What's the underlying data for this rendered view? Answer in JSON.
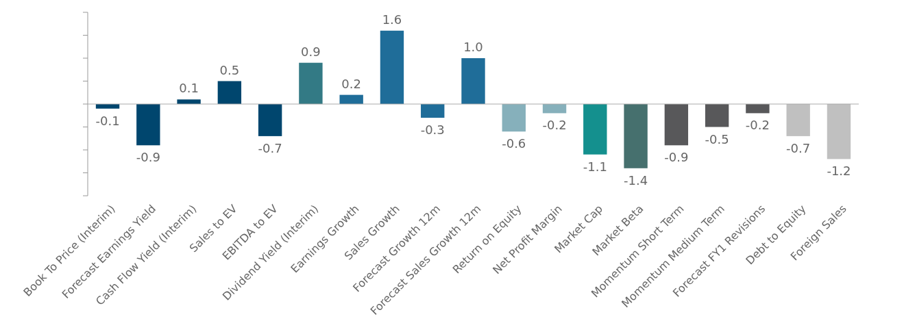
{
  "chart_data": {
    "type": "bar",
    "categories": [
      "Book To Price (Interim)",
      "Forecast Earnings Yield",
      "Cash Flow Yield (Interim)",
      "Sales to EV",
      "EBITDA to EV",
      "Dividend Yield (Interim)",
      "Earnings Growth",
      "Sales Growth",
      "Forecast Growth 12m",
      "Forecast Sales Growth 12m",
      "Return on Equity",
      "Net Profit Margin",
      "Market Cap",
      "Market Beta",
      "Momentum Short Term",
      "Momentum Medium Term",
      "Forecast FY1 Revisions",
      "Debt to Equity",
      "Foreign Sales"
    ],
    "values": [
      -0.1,
      -0.9,
      0.1,
      0.5,
      -0.7,
      0.9,
      0.2,
      1.6,
      -0.3,
      1.0,
      -0.6,
      -0.2,
      -1.1,
      -1.4,
      -0.9,
      -0.5,
      -0.2,
      -0.7,
      -1.2
    ],
    "value_labels": [
      "-0.1",
      "-0.9",
      "0.1",
      "0.5",
      "-0.7",
      "0.9",
      "0.2",
      "1.6",
      "-0.3",
      "1.0",
      "-0.6",
      "-0.2",
      "-1.1",
      "-1.4",
      "-0.9",
      "-0.5",
      "-0.2",
      "-0.7",
      "-1.2"
    ],
    "colors": [
      "#00466e",
      "#00466e",
      "#00466e",
      "#00466e",
      "#00466e",
      "#337a85",
      "#1f6d99",
      "#1f6d99",
      "#1f6d99",
      "#1f6d99",
      "#86b0bb",
      "#86b0bb",
      "#14908e",
      "#46706e",
      "#58585a",
      "#58585a",
      "#58585a",
      "#c0c0c0",
      "#c0c0c0"
    ],
    "ylim": [
      -2,
      2
    ],
    "yticks": [
      {
        "value": -2,
        "label": null
      },
      {
        "value": -1.5,
        "label": null
      },
      {
        "value": -1,
        "label": null
      },
      {
        "value": -0.5,
        "label": null
      },
      {
        "value": 0,
        "label": null
      },
      {
        "value": 0.5,
        "label": null
      },
      {
        "value": 1,
        "label": null
      },
      {
        "value": 1.5,
        "label": null
      },
      {
        "value": 2,
        "label": null
      }
    ],
    "tick_labels": "x"
  }
}
